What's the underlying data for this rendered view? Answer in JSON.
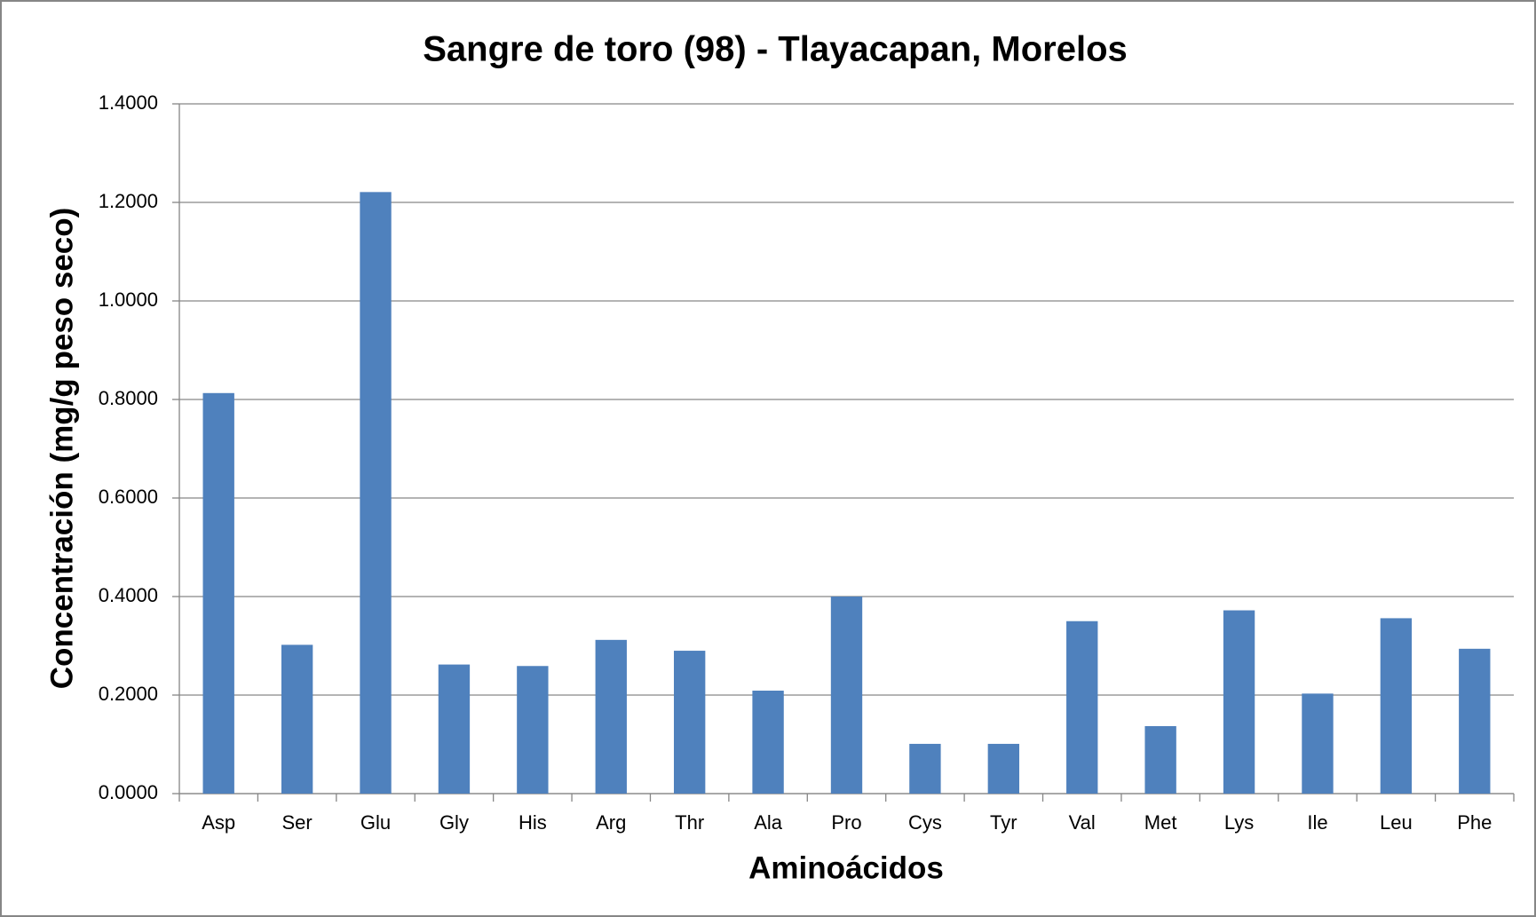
{
  "chart_data": {
    "type": "bar",
    "title": "Sangre de toro (98) - Tlayacapan, Morelos",
    "x_label": "Aminoácidos",
    "y_label": "Concentración (mg/g peso seco)",
    "categories": [
      "Asp",
      "Ser",
      "Glu",
      "Gly",
      "His",
      "Arg",
      "Thr",
      "Ala",
      "Pro",
      "Cys",
      "Tyr",
      "Val",
      "Met",
      "Lys",
      "Ile",
      "Leu",
      "Phe"
    ],
    "values": [
      0.813,
      0.302,
      1.221,
      0.262,
      0.259,
      0.312,
      0.29,
      0.209,
      0.4,
      0.101,
      0.101,
      0.35,
      0.137,
      0.372,
      0.203,
      0.356,
      0.294
    ],
    "color": "#4f81bd",
    "ylim": [
      0,
      1.4
    ],
    "yticks": [
      {
        "value": 0,
        "label": "0.0000"
      },
      {
        "value": 0.2,
        "label": "0.2000"
      },
      {
        "value": 0.4,
        "label": "0.4000"
      },
      {
        "value": 0.6,
        "label": "0.6000"
      },
      {
        "value": 0.8,
        "label": "0.8000"
      },
      {
        "value": 1.0,
        "label": "1.0000"
      },
      {
        "value": 1.2,
        "label": "1.2000"
      },
      {
        "value": 1.4,
        "label": "1.4000"
      }
    ],
    "grid": true
  }
}
